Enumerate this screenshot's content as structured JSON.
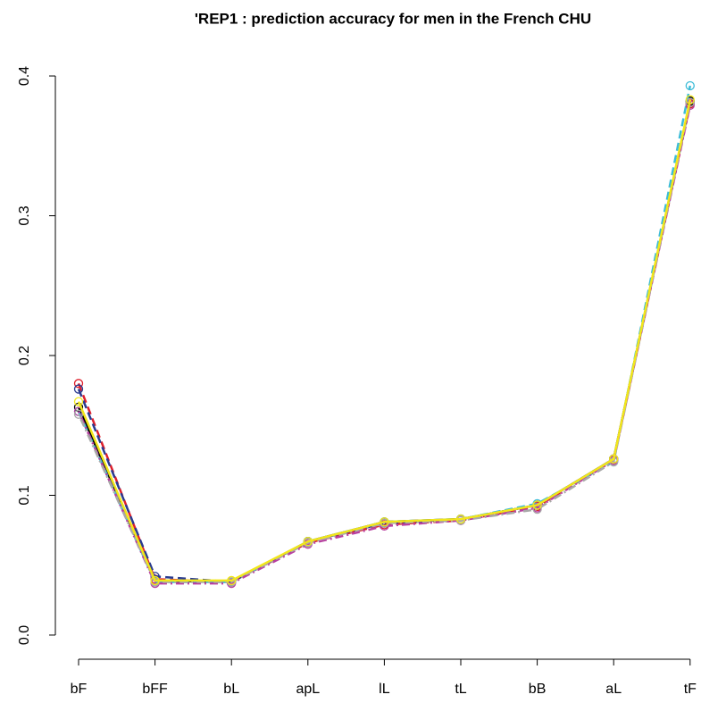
{
  "chart_data": {
    "type": "line",
    "title": "'REP1 : prediction accuracy for men in the French CHU",
    "categories": [
      "bF",
      "bFF",
      "bL",
      "apL",
      "lL",
      "tL",
      "bB",
      "aL",
      "tF"
    ],
    "series": [
      {
        "color": "#000000",
        "linestyle": "solid",
        "values": [
          0.163,
          0.039,
          0.038,
          0.067,
          0.081,
          0.083,
          0.093,
          0.126,
          0.382
        ]
      },
      {
        "color": "#df1f2b",
        "linestyle": "dashed",
        "values": [
          0.18,
          0.04,
          0.038,
          0.066,
          0.079,
          0.082,
          0.092,
          0.125,
          0.38
        ]
      },
      {
        "color": "#2a3b8f",
        "linestyle": "dashed",
        "values": [
          0.176,
          0.042,
          0.038,
          0.067,
          0.08,
          0.083,
          0.093,
          0.126,
          0.381
        ]
      },
      {
        "color": "#3cbcd8",
        "linestyle": "dashed",
        "values": [
          0.16,
          0.038,
          0.038,
          0.067,
          0.081,
          0.083,
          0.094,
          0.124,
          0.393
        ]
      },
      {
        "color": "#b83fa0",
        "linestyle": "dotdash",
        "values": [
          0.16,
          0.037,
          0.037,
          0.065,
          0.078,
          0.082,
          0.091,
          0.125,
          0.379
        ]
      },
      {
        "color": "#a8a8a8",
        "linestyle": "dotdash",
        "values": [
          0.158,
          0.038,
          0.038,
          0.066,
          0.08,
          0.082,
          0.09,
          0.124,
          0.381
        ]
      },
      {
        "color": "#f2e61a",
        "linestyle": "solid",
        "values": [
          0.167,
          0.039,
          0.039,
          0.067,
          0.081,
          0.083,
          0.093,
          0.126,
          0.383
        ]
      }
    ],
    "ylim": [
      -0.016,
      0.416
    ],
    "yticks": [
      {
        "value": 0,
        "label": "0.0"
      },
      0.1,
      0.2,
      0.3,
      0.4
    ],
    "grid": false
  }
}
